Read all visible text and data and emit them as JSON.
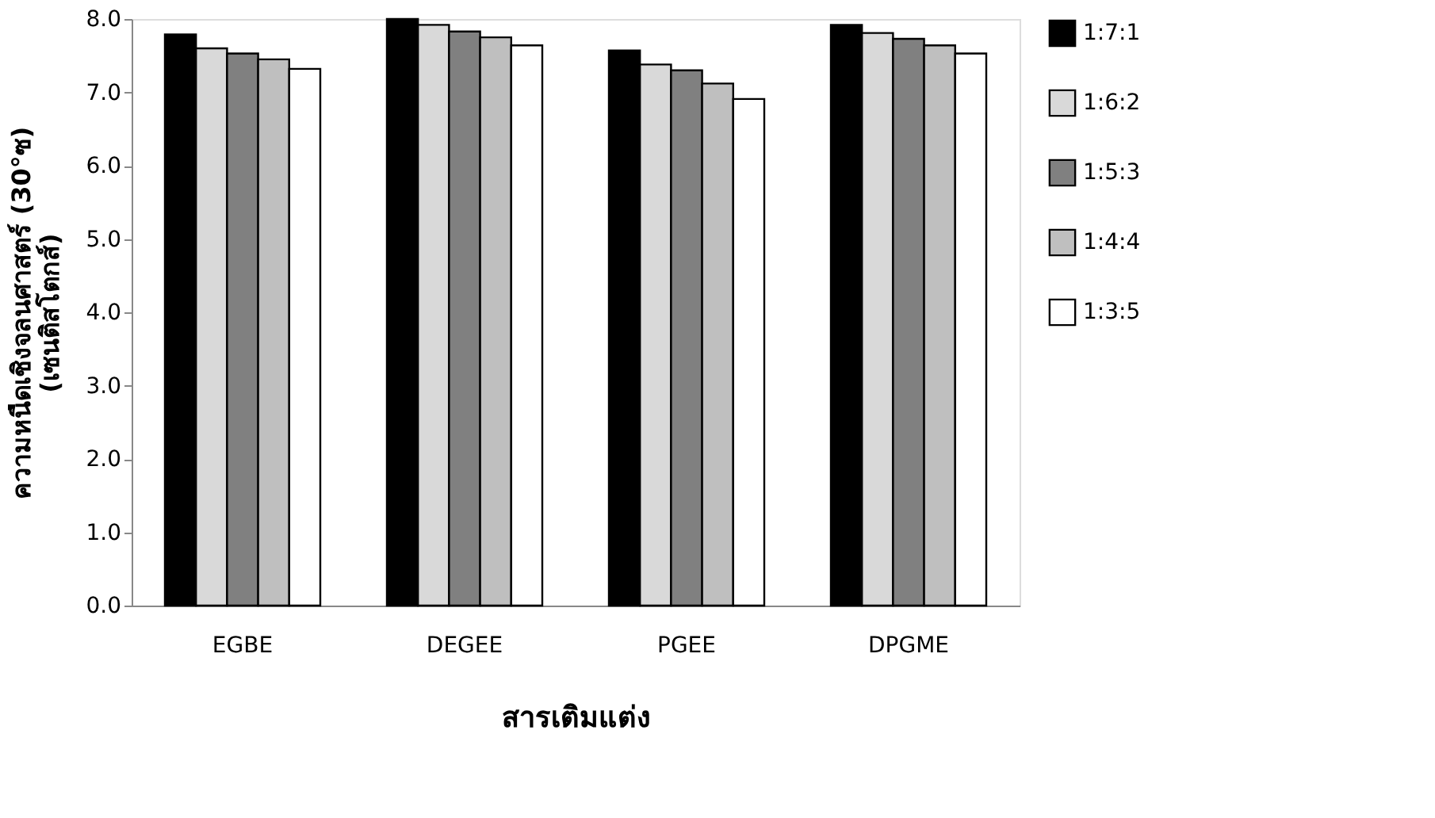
{
  "chart_data": {
    "type": "bar",
    "xlabel": "สารเติมแต่ง",
    "ylabel": "ความหนืดเชิงจลนศาสตร์ (30°ซ)\n(เซนติสโตกส์)",
    "categories": [
      "EGBE",
      "DEGEE",
      "PGEE",
      "DPGME"
    ],
    "series": [
      {
        "name": "1:7:1",
        "color": "#000000",
        "values": [
          7.79,
          8.0,
          7.57,
          7.92
        ]
      },
      {
        "name": "1:6:2",
        "color": "#d9d9d9",
        "values": [
          7.6,
          7.92,
          7.38,
          7.81
        ]
      },
      {
        "name": "1:5:3",
        "color": "#808080",
        "values": [
          7.53,
          7.83,
          7.3,
          7.73
        ]
      },
      {
        "name": "1:4:4",
        "color": "#bfbfbf",
        "values": [
          7.45,
          7.75,
          7.12,
          7.64
        ]
      },
      {
        "name": "1:3:5",
        "color": "#ffffff",
        "values": [
          7.32,
          7.64,
          6.91,
          7.53
        ]
      }
    ],
    "ylim": [
      0,
      8
    ],
    "yticks": [
      {
        "value": 0,
        "label": "0.0"
      },
      {
        "value": 1,
        "label": "1.0"
      },
      {
        "value": 2,
        "label": "2.0"
      },
      {
        "value": 3,
        "label": "3.0"
      },
      {
        "value": 4,
        "label": "4.0"
      },
      {
        "value": 5,
        "label": "5.0"
      },
      {
        "value": 6,
        "label": "6.0"
      },
      {
        "value": 7,
        "label": "7.0"
      },
      {
        "value": 8,
        "label": "8.0"
      }
    ],
    "grid": false,
    "legend": "right"
  }
}
